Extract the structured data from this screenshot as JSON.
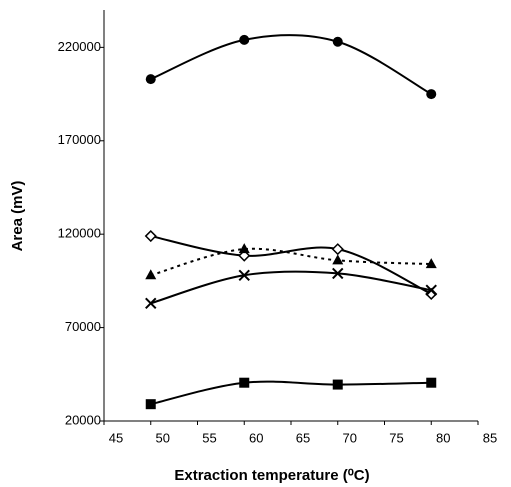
{
  "chart_data": {
    "type": "line",
    "x_label": "Extraction temperature (⁰C)",
    "y_label": "Area (mV)",
    "x": [
      50,
      60,
      70,
      80
    ],
    "xlim": [
      45,
      85
    ],
    "xticks": [
      45,
      50,
      55,
      60,
      65,
      70,
      75,
      80,
      85
    ],
    "ylim": [
      20000,
      240000
    ],
    "yticks": [
      20000,
      70000,
      120000,
      170000,
      220000
    ],
    "smooth": true,
    "series": [
      {
        "color": "#000000",
        "marker": "circle",
        "line_style": "solid",
        "values": [
          203000,
          224000,
          223000,
          195000
        ]
      },
      {
        "color": "#000000",
        "marker": "diamond-open",
        "line_style": "solid",
        "values": [
          119000,
          108500,
          112000,
          88000
        ]
      },
      {
        "color": "#000000",
        "marker": "triangle",
        "line_style": "dotted",
        "values": [
          98000,
          112000,
          106000,
          104000
        ]
      },
      {
        "color": "#000000",
        "marker": "x",
        "line_style": "solid",
        "values": [
          83000,
          98000,
          99000,
          90000
        ]
      },
      {
        "color": "#000000",
        "marker": "square",
        "line_style": "solid",
        "values": [
          29000,
          40500,
          39500,
          40500
        ]
      }
    ]
  }
}
